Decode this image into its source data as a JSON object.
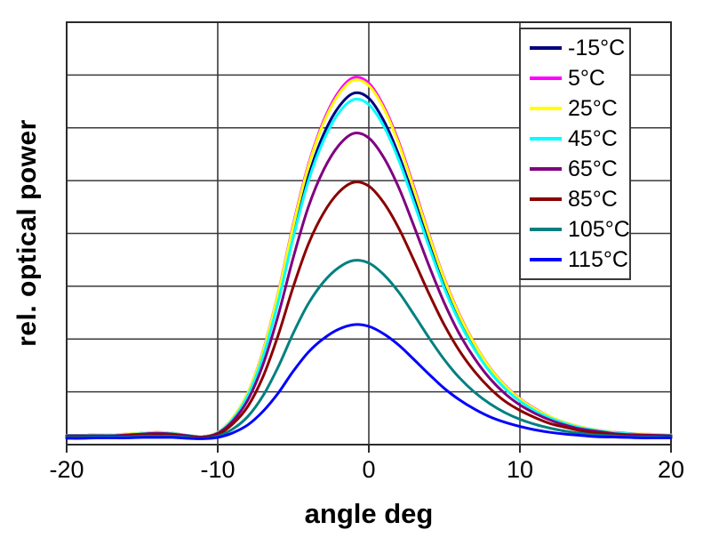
{
  "chart_data": {
    "type": "line",
    "title": "",
    "xlabel": "angle deg",
    "ylabel": "rel. optical power",
    "x_range": [
      -20,
      20
    ],
    "y_range": [
      0,
      1
    ],
    "grid": true,
    "y_divisions": 8,
    "x_gridlines": [
      -10,
      0,
      10
    ],
    "x_ticks": [
      -20,
      -10,
      0,
      10,
      20
    ],
    "x_tick_labels": [
      "-20",
      "-10",
      "0",
      "10",
      "20"
    ],
    "legend_position": "top-right-inside",
    "x": [
      -20,
      -19,
      -18,
      -17,
      -16,
      -15,
      -14,
      -13,
      -12,
      -11,
      -10,
      -9,
      -8,
      -7,
      -6,
      -5,
      -4,
      -3,
      -2,
      -1,
      0,
      1,
      2,
      3,
      4,
      5,
      6,
      7,
      8,
      9,
      10,
      11,
      12,
      13,
      14,
      15,
      16,
      17,
      18,
      19,
      20
    ],
    "series": [
      {
        "label": "-15°C",
        "color": "#000080",
        "values": [
          0.022,
          0.022,
          0.023,
          0.023,
          0.024,
          0.027,
          0.028,
          0.027,
          0.022,
          0.019,
          0.028,
          0.061,
          0.119,
          0.213,
          0.344,
          0.5,
          0.635,
          0.734,
          0.799,
          0.832,
          0.82,
          0.766,
          0.684,
          0.582,
          0.475,
          0.377,
          0.295,
          0.229,
          0.176,
          0.135,
          0.105,
          0.082,
          0.064,
          0.051,
          0.041,
          0.034,
          0.029,
          0.026,
          0.024,
          0.023,
          0.023
        ]
      },
      {
        "label": "5°C",
        "color": "#FF00FF",
        "values": [
          0.022,
          0.022,
          0.023,
          0.023,
          0.025,
          0.027,
          0.029,
          0.027,
          0.022,
          0.019,
          0.029,
          0.063,
          0.123,
          0.222,
          0.359,
          0.522,
          0.663,
          0.766,
          0.835,
          0.869,
          0.856,
          0.8,
          0.715,
          0.608,
          0.496,
          0.393,
          0.308,
          0.239,
          0.183,
          0.141,
          0.109,
          0.085,
          0.066,
          0.052,
          0.042,
          0.035,
          0.03,
          0.027,
          0.025,
          0.024,
          0.023
        ]
      },
      {
        "label": "25°C",
        "color": "#FFFF00",
        "values": [
          0.022,
          0.022,
          0.023,
          0.023,
          0.025,
          0.027,
          0.029,
          0.027,
          0.022,
          0.019,
          0.029,
          0.063,
          0.123,
          0.22,
          0.357,
          0.518,
          0.659,
          0.761,
          0.829,
          0.863,
          0.85,
          0.795,
          0.71,
          0.603,
          0.493,
          0.391,
          0.306,
          0.238,
          0.182,
          0.14,
          0.108,
          0.084,
          0.066,
          0.052,
          0.042,
          0.035,
          0.03,
          0.026,
          0.025,
          0.024,
          0.023
        ]
      },
      {
        "label": "45°C",
        "color": "#00FFFF",
        "values": [
          0.022,
          0.022,
          0.022,
          0.022,
          0.024,
          0.026,
          0.028,
          0.026,
          0.022,
          0.018,
          0.028,
          0.06,
          0.117,
          0.209,
          0.338,
          0.491,
          0.624,
          0.72,
          0.785,
          0.817,
          0.805,
          0.753,
          0.672,
          0.571,
          0.467,
          0.37,
          0.29,
          0.225,
          0.173,
          0.133,
          0.103,
          0.08,
          0.063,
          0.05,
          0.04,
          0.034,
          0.029,
          0.026,
          0.024,
          0.023,
          0.022
        ]
      },
      {
        "label": "65°C",
        "color": "#800080",
        "values": [
          0.021,
          0.021,
          0.021,
          0.021,
          0.023,
          0.025,
          0.027,
          0.025,
          0.021,
          0.018,
          0.027,
          0.056,
          0.106,
          0.19,
          0.306,
          0.443,
          0.563,
          0.65,
          0.708,
          0.737,
          0.726,
          0.679,
          0.607,
          0.516,
          0.422,
          0.335,
          0.262,
          0.204,
          0.157,
          0.121,
          0.094,
          0.074,
          0.058,
          0.046,
          0.037,
          0.032,
          0.027,
          0.024,
          0.023,
          0.022,
          0.021
        ]
      },
      {
        "label": "85°C",
        "color": "#8B0000",
        "values": [
          0.019,
          0.019,
          0.02,
          0.02,
          0.021,
          0.023,
          0.024,
          0.023,
          0.019,
          0.017,
          0.024,
          0.049,
          0.091,
          0.161,
          0.259,
          0.374,
          0.475,
          0.548,
          0.597,
          0.621,
          0.612,
          0.572,
          0.511,
          0.435,
          0.356,
          0.283,
          0.222,
          0.173,
          0.134,
          0.103,
          0.081,
          0.064,
          0.05,
          0.041,
          0.033,
          0.028,
          0.025,
          0.022,
          0.021,
          0.021,
          0.02
        ]
      },
      {
        "label": "105°C",
        "color": "#008080",
        "values": [
          0.017,
          0.017,
          0.018,
          0.018,
          0.018,
          0.02,
          0.02,
          0.02,
          0.017,
          0.015,
          0.02,
          0.037,
          0.067,
          0.116,
          0.184,
          0.264,
          0.334,
          0.385,
          0.419,
          0.436,
          0.43,
          0.402,
          0.36,
          0.307,
          0.252,
          0.201,
          0.158,
          0.124,
          0.097,
          0.076,
          0.06,
          0.048,
          0.039,
          0.032,
          0.027,
          0.023,
          0.021,
          0.019,
          0.018,
          0.018,
          0.017
        ]
      },
      {
        "label": "115°C",
        "color": "#0000FF",
        "values": [
          0.015,
          0.015,
          0.016,
          0.016,
          0.016,
          0.017,
          0.017,
          0.017,
          0.015,
          0.014,
          0.017,
          0.028,
          0.047,
          0.079,
          0.122,
          0.174,
          0.219,
          0.251,
          0.273,
          0.284,
          0.28,
          0.262,
          0.235,
          0.201,
          0.166,
          0.133,
          0.106,
          0.084,
          0.066,
          0.053,
          0.043,
          0.035,
          0.029,
          0.025,
          0.022,
          0.019,
          0.018,
          0.017,
          0.016,
          0.016,
          0.016
        ]
      }
    ]
  },
  "layout_colors": {
    "background": "#FFFFFF",
    "grid": "#3a3a3a",
    "border": "#2b2b2b",
    "text": "#000000"
  }
}
